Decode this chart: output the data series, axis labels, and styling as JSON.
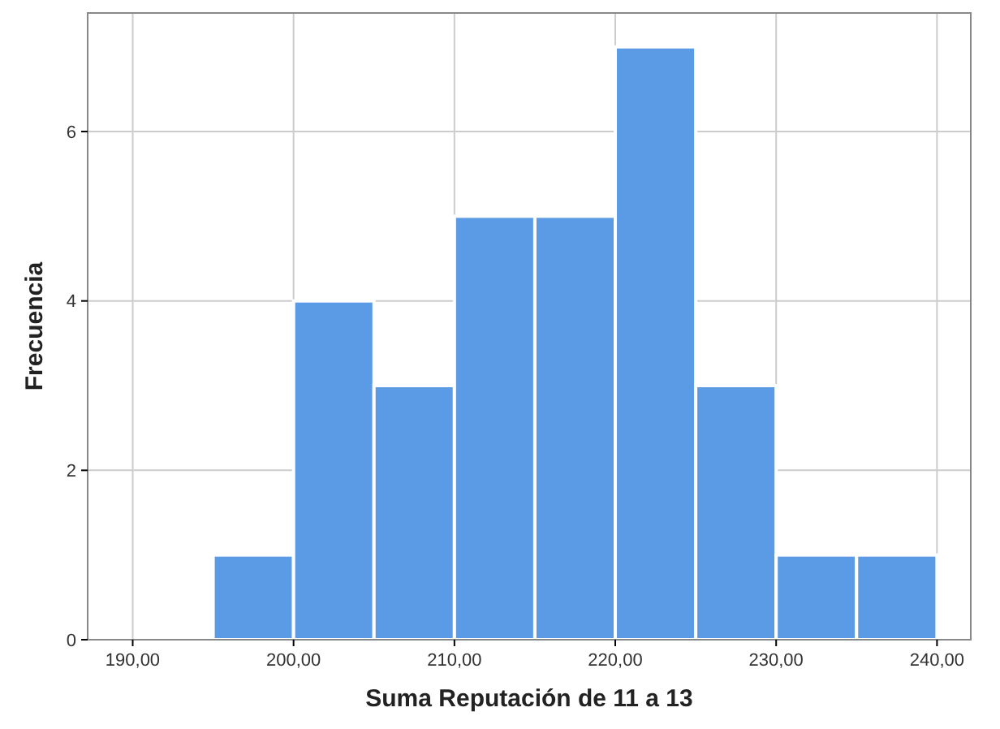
{
  "chart_data": {
    "type": "histogram",
    "xlabel": "Suma Reputación de 11 a 13",
    "ylabel": "Frecuencia",
    "bins": [
      195,
      200,
      205,
      210,
      215,
      220,
      225,
      230,
      235,
      240
    ],
    "values": [
      1,
      4,
      3,
      5,
      5,
      7,
      3,
      1,
      1
    ],
    "color": "#5b9be6",
    "xlim": [
      187.2,
      242.1
    ],
    "xticks": [
      {
        "value": 190,
        "label": "190,00"
      },
      {
        "value": 200,
        "label": "200,00"
      },
      {
        "value": 210,
        "label": "210,00"
      },
      {
        "value": 220,
        "label": "220,00"
      },
      {
        "value": 230,
        "label": "230,00"
      },
      {
        "value": 240,
        "label": "240,00"
      }
    ],
    "ylim": [
      0,
      7.4
    ],
    "yticks": [
      0,
      2,
      4,
      6
    ],
    "grid": true
  }
}
